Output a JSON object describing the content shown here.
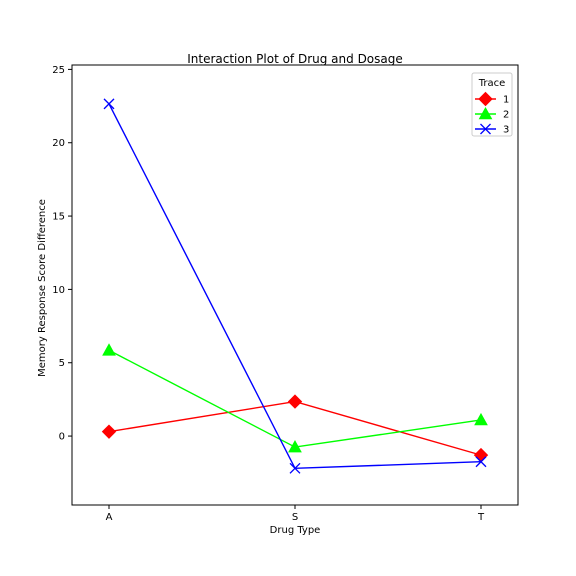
{
  "chart_data": {
    "type": "line",
    "title": "Interaction Plot of Drug and Dosage",
    "xlabel": "Drug Type",
    "ylabel": "Memory Response Score Difference",
    "categories": [
      "A",
      "S",
      "T"
    ],
    "ylim": [
      -4.7,
      25.3
    ],
    "yticks": [
      0,
      5,
      10,
      15,
      20,
      25
    ],
    "grid": false,
    "legend": {
      "title": "Trace",
      "placement": "top-right"
    },
    "series": [
      {
        "name": "1",
        "values": [
          0.3,
          2.35,
          -1.3
        ],
        "color": "#ff0000",
        "marker": "diamond"
      },
      {
        "name": "2",
        "values": [
          5.85,
          -0.75,
          1.1
        ],
        "color": "#00ff00",
        "marker": "triangle"
      },
      {
        "name": "3",
        "values": [
          22.65,
          -2.2,
          -1.75
        ],
        "color": "#0000ff",
        "marker": "x"
      }
    ]
  },
  "colors": {
    "trace_1": "#ff0000",
    "trace_2": "#00ff00",
    "trace_3": "#0000ff"
  }
}
